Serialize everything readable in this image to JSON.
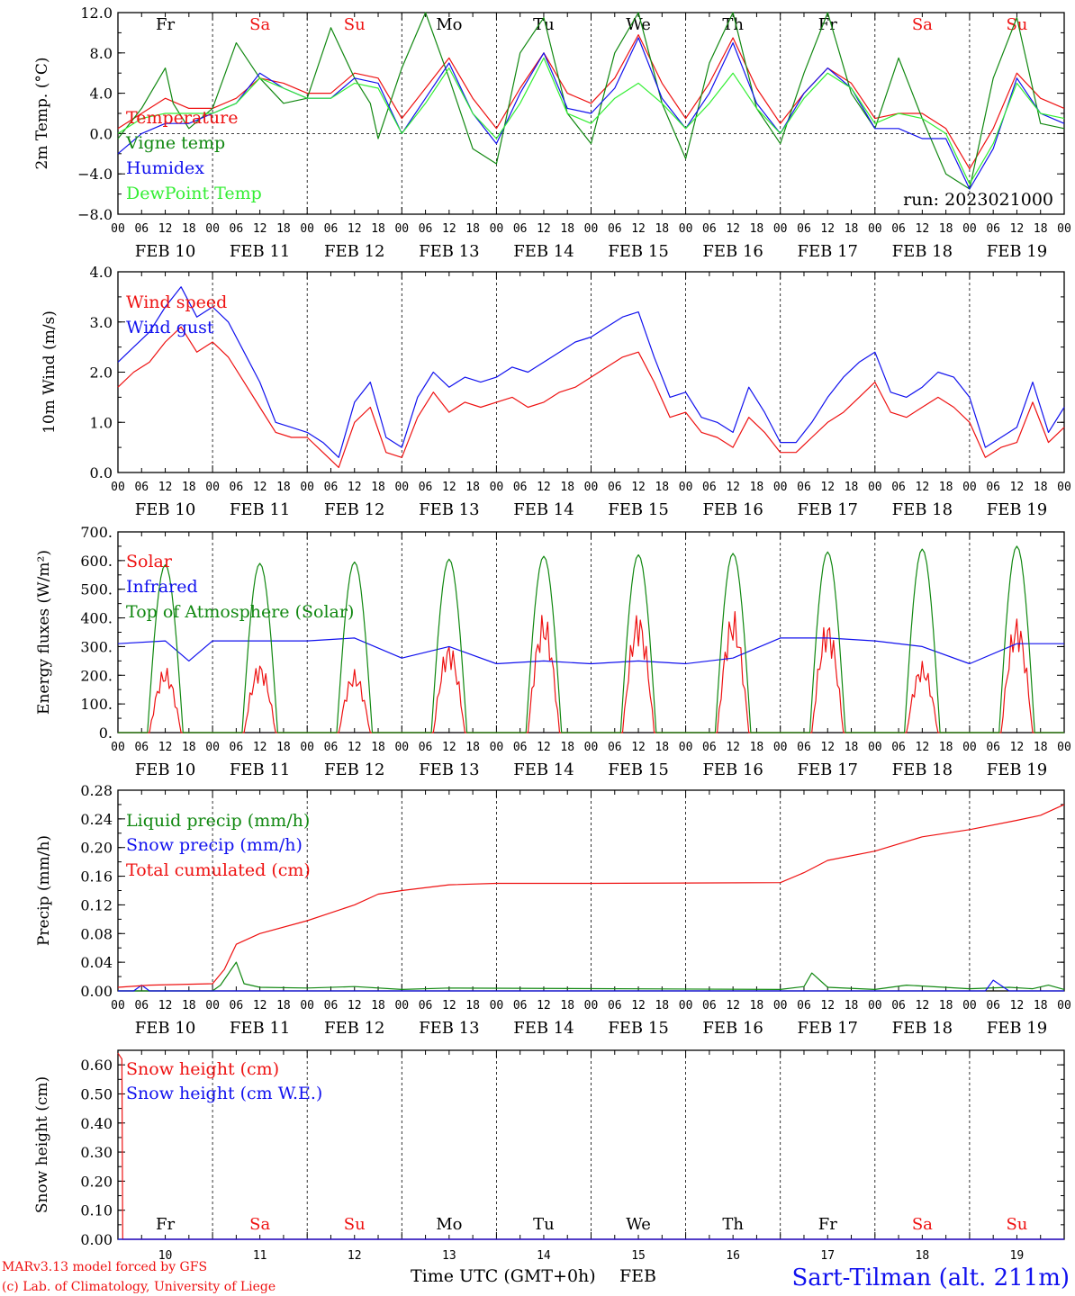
{
  "colors": {
    "red": "#ee1111",
    "green": "#118811",
    "blue": "#1111ee",
    "lightgreen": "#33ee33",
    "weekend": "#ee1111",
    "weekday": "#000000"
  },
  "days": [
    "FEB 10",
    "FEB 11",
    "FEB 12",
    "FEB 13",
    "FEB 14",
    "FEB 15",
    "FEB 16",
    "FEB 17",
    "FEB 18",
    "FEB 19"
  ],
  "day_numbers": [
    "10",
    "11",
    "12",
    "13",
    "14",
    "15",
    "16",
    "17",
    "18",
    "19"
  ],
  "weekdays": [
    {
      "name": "Fr",
      "weekend": false
    },
    {
      "name": "Sa",
      "weekend": true
    },
    {
      "name": "Su",
      "weekend": true
    },
    {
      "name": "Mo",
      "weekend": false
    },
    {
      "name": "Tu",
      "weekend": false
    },
    {
      "name": "We",
      "weekend": false
    },
    {
      "name": "Th",
      "weekend": false
    },
    {
      "name": "Fr",
      "weekend": false
    },
    {
      "name": "Sa",
      "weekend": true
    },
    {
      "name": "Su",
      "weekend": true
    }
  ],
  "hour_ticks": [
    "00",
    "06",
    "12",
    "18"
  ],
  "run_label": "run: 2023021000",
  "footer": {
    "model": "MARv3.13 model forced by GFS",
    "credit": "(c) Lab. of Climatology, University of Liege",
    "xlabel": "Time UTC (GMT+0h)",
    "month": "FEB",
    "station": "Sart-Tilman (alt. 211m)"
  },
  "chart_data": [
    {
      "type": "line",
      "id": "temp",
      "ylabel": "2m Temp. (°C)",
      "ylim": [
        -8,
        12
      ],
      "yticks": [
        "12.0",
        "8.0",
        "4.0",
        "0.0",
        "−4.0",
        "−8.0"
      ],
      "ytick_values": [
        12,
        8,
        4,
        0,
        -4,
        -8
      ],
      "legend_placement": "left",
      "show_weekdays": true,
      "show_run": true,
      "zero_line": true,
      "series": [
        {
          "name": "Temperature",
          "color": "#ee1111",
          "x": [
            0,
            6,
            12,
            18,
            24,
            30,
            36,
            42,
            48,
            54,
            60,
            66,
            72,
            78,
            84,
            90,
            96,
            102,
            108,
            114,
            120,
            126,
            132,
            138,
            144,
            150,
            156,
            162,
            168,
            174,
            180,
            186,
            192,
            198,
            204,
            210,
            216,
            222,
            228,
            234,
            240
          ],
          "values": [
            0.5,
            2.0,
            3.5,
            2.5,
            2.5,
            3.5,
            5.5,
            5.0,
            4.0,
            4.0,
            6.0,
            5.5,
            1.5,
            4.5,
            7.5,
            3.5,
            0.5,
            4.5,
            8.0,
            4.0,
            3.0,
            5.5,
            9.8,
            5.0,
            1.5,
            5.0,
            9.5,
            4.5,
            1.0,
            4.0,
            6.5,
            5.0,
            1.5,
            2.0,
            2.0,
            0.5,
            -3.5,
            0.5,
            6.0,
            3.5,
            2.5
          ]
        },
        {
          "name": "Vigne temp",
          "color": "#118811",
          "x": [
            0,
            6,
            12,
            14,
            18,
            24,
            30,
            36,
            42,
            48,
            54,
            60,
            64,
            66,
            72,
            78,
            84,
            90,
            96,
            102,
            108,
            114,
            120,
            126,
            132,
            138,
            144,
            150,
            156,
            162,
            168,
            174,
            180,
            186,
            192,
            198,
            204,
            210,
            216,
            222,
            228,
            234,
            240
          ],
          "values": [
            -0.5,
            2.5,
            6.5,
            3.0,
            0.5,
            2.5,
            9.0,
            5.5,
            3.0,
            3.5,
            10.5,
            5.5,
            3.0,
            -0.5,
            6.5,
            12.0,
            5.5,
            -1.5,
            -3.0,
            8.0,
            11.5,
            2.0,
            -1.0,
            8.0,
            12.5,
            3.0,
            -2.5,
            7.0,
            12.0,
            2.5,
            -1.0,
            6.0,
            12.0,
            4.0,
            0.5,
            7.5,
            1.5,
            -4.0,
            -5.5,
            5.5,
            11.5,
            1.0,
            0.5
          ]
        },
        {
          "name": "Humidex",
          "color": "#1111ee",
          "x": [
            0,
            6,
            12,
            18,
            24,
            30,
            36,
            42,
            48,
            54,
            60,
            66,
            72,
            78,
            84,
            90,
            96,
            102,
            108,
            114,
            120,
            126,
            132,
            138,
            144,
            150,
            156,
            162,
            168,
            174,
            180,
            186,
            192,
            198,
            204,
            210,
            216,
            222,
            228,
            234,
            240
          ],
          "values": [
            -2.0,
            0.0,
            1.0,
            1.0,
            2.0,
            3.0,
            6.0,
            4.5,
            3.5,
            3.5,
            5.5,
            5.0,
            0.0,
            3.5,
            7.0,
            2.0,
            -1.0,
            4.0,
            8.0,
            2.5,
            2.0,
            4.5,
            9.5,
            3.5,
            0.5,
            4.0,
            9.0,
            3.0,
            0.0,
            4.0,
            6.5,
            4.5,
            0.5,
            0.5,
            -0.5,
            -0.5,
            -5.5,
            -1.5,
            5.5,
            2.0,
            1.0
          ]
        },
        {
          "name": "DewPoint Temp",
          "color": "#33ee33",
          "x": [
            0,
            6,
            12,
            18,
            24,
            30,
            36,
            42,
            48,
            54,
            60,
            66,
            72,
            78,
            84,
            90,
            96,
            102,
            108,
            114,
            120,
            126,
            132,
            138,
            144,
            150,
            156,
            162,
            168,
            174,
            180,
            186,
            192,
            198,
            204,
            210,
            216,
            222,
            228,
            234,
            240
          ],
          "values": [
            0.0,
            1.5,
            2.0,
            2.0,
            2.0,
            3.0,
            5.5,
            4.5,
            3.5,
            3.5,
            5.0,
            4.5,
            0.0,
            3.0,
            6.5,
            2.0,
            -0.5,
            3.0,
            7.5,
            2.0,
            1.0,
            3.5,
            5.0,
            3.0,
            0.5,
            3.0,
            6.0,
            2.5,
            0.0,
            3.5,
            6.0,
            4.5,
            1.0,
            2.0,
            1.5,
            0.0,
            -5.0,
            -1.0,
            5.0,
            2.0,
            1.5
          ]
        }
      ]
    },
    {
      "type": "line",
      "id": "wind",
      "ylabel": "10m Wind (m/s)",
      "ylim": [
        0,
        4
      ],
      "yticks": [
        "4.0",
        "3.0",
        "2.0",
        "1.0",
        "0.0"
      ],
      "ytick_values": [
        4,
        3,
        2,
        1,
        0
      ],
      "legend_placement": "left",
      "series": [
        {
          "name": "Wind speed",
          "color": "#ee1111",
          "x": [
            0,
            4,
            8,
            12,
            16,
            20,
            24,
            28,
            32,
            36,
            40,
            44,
            48,
            52,
            56,
            60,
            64,
            68,
            72,
            76,
            80,
            84,
            88,
            92,
            96,
            100,
            104,
            108,
            112,
            116,
            120,
            124,
            128,
            132,
            136,
            140,
            144,
            148,
            152,
            156,
            160,
            164,
            168,
            172,
            176,
            180,
            184,
            188,
            192,
            196,
            200,
            204,
            208,
            212,
            216,
            220,
            224,
            228,
            232,
            236,
            240
          ],
          "values": [
            1.7,
            2.0,
            2.2,
            2.6,
            2.9,
            2.4,
            2.6,
            2.3,
            1.8,
            1.3,
            0.8,
            0.7,
            0.7,
            0.4,
            0.1,
            1.0,
            1.3,
            0.4,
            0.3,
            1.1,
            1.6,
            1.2,
            1.4,
            1.3,
            1.4,
            1.5,
            1.3,
            1.4,
            1.6,
            1.7,
            1.9,
            2.1,
            2.3,
            2.4,
            1.8,
            1.1,
            1.2,
            0.8,
            0.7,
            0.5,
            1.1,
            0.8,
            0.4,
            0.4,
            0.7,
            1.0,
            1.2,
            1.5,
            1.8,
            1.2,
            1.1,
            1.3,
            1.5,
            1.3,
            1.0,
            0.3,
            0.5,
            0.6,
            1.4,
            0.6,
            0.9
          ]
        },
        {
          "name": "Wind gust",
          "color": "#1111ee",
          "x": [
            0,
            4,
            8,
            12,
            16,
            20,
            24,
            28,
            32,
            36,
            40,
            44,
            48,
            52,
            56,
            60,
            64,
            68,
            72,
            76,
            80,
            84,
            88,
            92,
            96,
            100,
            104,
            108,
            112,
            116,
            120,
            124,
            128,
            132,
            136,
            140,
            144,
            148,
            152,
            156,
            160,
            164,
            168,
            172,
            176,
            180,
            184,
            188,
            192,
            196,
            200,
            204,
            208,
            212,
            216,
            220,
            224,
            228,
            232,
            236,
            240
          ],
          "values": [
            2.2,
            2.5,
            2.8,
            3.3,
            3.7,
            3.1,
            3.3,
            3.0,
            2.4,
            1.8,
            1.0,
            0.9,
            0.8,
            0.6,
            0.3,
            1.4,
            1.8,
            0.7,
            0.5,
            1.5,
            2.0,
            1.7,
            1.9,
            1.8,
            1.9,
            2.1,
            2.0,
            2.2,
            2.4,
            2.6,
            2.7,
            2.9,
            3.1,
            3.2,
            2.3,
            1.5,
            1.6,
            1.1,
            1.0,
            0.8,
            1.7,
            1.2,
            0.6,
            0.6,
            1.0,
            1.5,
            1.9,
            2.2,
            2.4,
            1.6,
            1.5,
            1.7,
            2.0,
            1.9,
            1.5,
            0.5,
            0.7,
            0.9,
            1.8,
            0.8,
            1.3
          ]
        }
      ]
    },
    {
      "type": "line",
      "id": "energy",
      "ylabel": "Energy fluxes (W/m²)",
      "ylim": [
        0,
        700
      ],
      "yticks": [
        "700.",
        "600.",
        "500.",
        "400.",
        "300.",
        "200.",
        "100.",
        "0."
      ],
      "ytick_values": [
        700,
        600,
        500,
        400,
        300,
        200,
        100,
        0
      ],
      "legend_placement": "left",
      "series": [
        {
          "name": "Solar",
          "color": "#ee1111",
          "daily_peak_hours": [
            8,
            16
          ],
          "daily_peaks": [
            230,
            250,
            220,
            320,
            420,
            430,
            430,
            400,
            250,
            410
          ]
        },
        {
          "name": "Infrared",
          "color": "#1111ee",
          "x": [
            0,
            12,
            18,
            24,
            36,
            48,
            60,
            72,
            84,
            96,
            108,
            120,
            132,
            144,
            156,
            168,
            180,
            192,
            204,
            216,
            228,
            240
          ],
          "values": [
            310,
            320,
            250,
            320,
            320,
            320,
            330,
            260,
            300,
            240,
            250,
            240,
            250,
            240,
            260,
            330,
            330,
            320,
            300,
            240,
            310,
            310
          ]
        },
        {
          "name": "Top of Atmosphere (Solar)",
          "color": "#118811",
          "daily_peak_hours": [
            7.5,
            16.5
          ],
          "daily_peaks": [
            585,
            590,
            595,
            605,
            615,
            620,
            625,
            630,
            640,
            650
          ]
        }
      ]
    },
    {
      "type": "line",
      "id": "precip",
      "ylabel": "Precip (mm/h)",
      "ylim": [
        0,
        0.28
      ],
      "yticks": [
        "0.28",
        "0.24",
        "0.20",
        "0.16",
        "0.12",
        "0.08",
        "0.04",
        "0.00"
      ],
      "ytick_values": [
        0.28,
        0.24,
        0.2,
        0.16,
        0.12,
        0.08,
        0.04,
        0.0
      ],
      "legend_placement": "left",
      "series": [
        {
          "name": "Liquid precip (mm/h)",
          "color": "#118811",
          "x": [
            0,
            24,
            26,
            30,
            32,
            36,
            48,
            60,
            72,
            84,
            168,
            174,
            176,
            180,
            192,
            200,
            216,
            226,
            232,
            236,
            240
          ],
          "values": [
            0,
            0,
            0.008,
            0.04,
            0.01,
            0.005,
            0.004,
            0.006,
            0.002,
            0.004,
            0.002,
            0.006,
            0.025,
            0.005,
            0.002,
            0.008,
            0.003,
            0.005,
            0.003,
            0.008,
            0.002
          ]
        },
        {
          "name": "Snow precip (mm/h)",
          "color": "#1111ee",
          "x": [
            0,
            4,
            6,
            8,
            12,
            24,
            200,
            202,
            220,
            222,
            226,
            240
          ],
          "values": [
            0,
            0,
            0.008,
            0,
            0,
            0,
            0,
            0,
            0,
            0.015,
            0,
            0
          ]
        },
        {
          "name": "Total cumulated (cm)",
          "color": "#ee1111",
          "x": [
            0,
            8,
            24,
            27,
            30,
            36,
            48,
            60,
            66,
            72,
            84,
            96,
            120,
            168,
            174,
            180,
            192,
            204,
            216,
            228,
            234,
            240
          ],
          "values": [
            0.005,
            0.008,
            0.01,
            0.03,
            0.065,
            0.08,
            0.098,
            0.12,
            0.135,
            0.14,
            0.148,
            0.15,
            0.15,
            0.151,
            0.165,
            0.182,
            0.195,
            0.215,
            0.225,
            0.238,
            0.245,
            0.26
          ]
        }
      ]
    },
    {
      "type": "line",
      "id": "snow",
      "ylabel": "Snow height (cm)",
      "ylim": [
        0,
        0.65
      ],
      "yticks": [
        "0.60",
        "0.50",
        "0.40",
        "0.30",
        "0.20",
        "0.10",
        "0.00"
      ],
      "ytick_values": [
        0.6,
        0.5,
        0.4,
        0.3,
        0.2,
        0.1,
        0.0
      ],
      "legend_placement": "left",
      "show_weekdays": true,
      "series": [
        {
          "name": "Snow height (cm)",
          "color": "#ee1111",
          "x": [
            0,
            1,
            1.2,
            240
          ],
          "values": [
            0.64,
            0.62,
            0,
            0
          ]
        },
        {
          "name": "Snow height (cm W.E.)",
          "color": "#1111ee",
          "x": [
            0,
            240
          ],
          "values": [
            0,
            0
          ]
        }
      ]
    }
  ]
}
